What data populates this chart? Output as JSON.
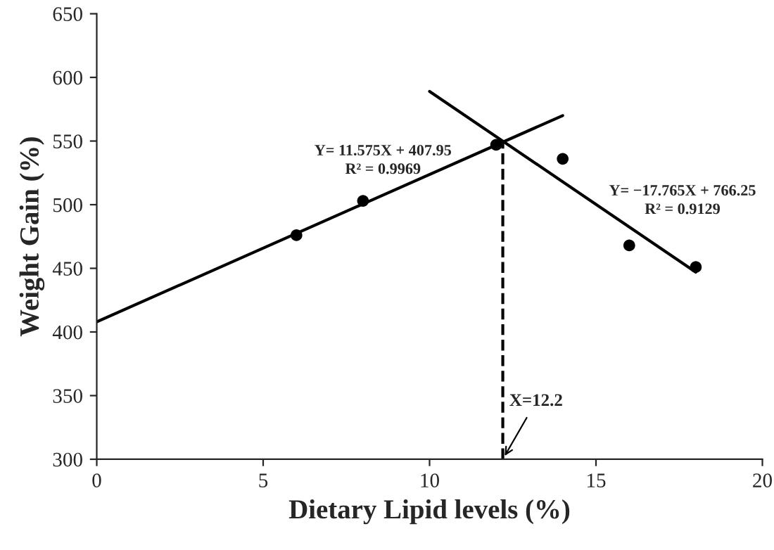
{
  "chart_data": {
    "type": "scatter",
    "xlabel": "Dietary Lipid levels (%)",
    "ylabel": "Weight Gain (%)",
    "xlim": [
      0,
      20
    ],
    "xticks": [
      0,
      5,
      10,
      15,
      20
    ],
    "ylim": [
      300,
      650
    ],
    "yticks": [
      300,
      350,
      400,
      450,
      500,
      550,
      600,
      650
    ],
    "grid": false,
    "legend": false,
    "marker": "circle",
    "series": [
      {
        "color": "#000000",
        "x": [
          6,
          8,
          12,
          14,
          16,
          18
        ],
        "values": [
          476,
          503,
          547,
          536,
          468,
          451
        ]
      },
      {
        "type": "line",
        "marker": "none",
        "color": "#000000",
        "x": [
          0,
          14
        ],
        "values": [
          408,
          570
        ],
        "line_style": "solid"
      },
      {
        "type": "line",
        "marker": "none",
        "color": "#000000",
        "x": [
          10,
          18
        ],
        "values": [
          589,
          447
        ],
        "line_style": "solid"
      },
      {
        "type": "line",
        "marker": "none",
        "color": "#000000",
        "x": [
          12.2,
          12.2
        ],
        "values": [
          300,
          549
        ],
        "line_style": "dashed"
      }
    ],
    "annotations": [
      "Y= 11.575X + 407.95\nR² = 0.9969",
      "Y= −17.765X + 766.25\nR² = 0.9129",
      {
        "text": "X=12.2",
        "x": 12.2,
        "y": 300
      }
    ]
  }
}
